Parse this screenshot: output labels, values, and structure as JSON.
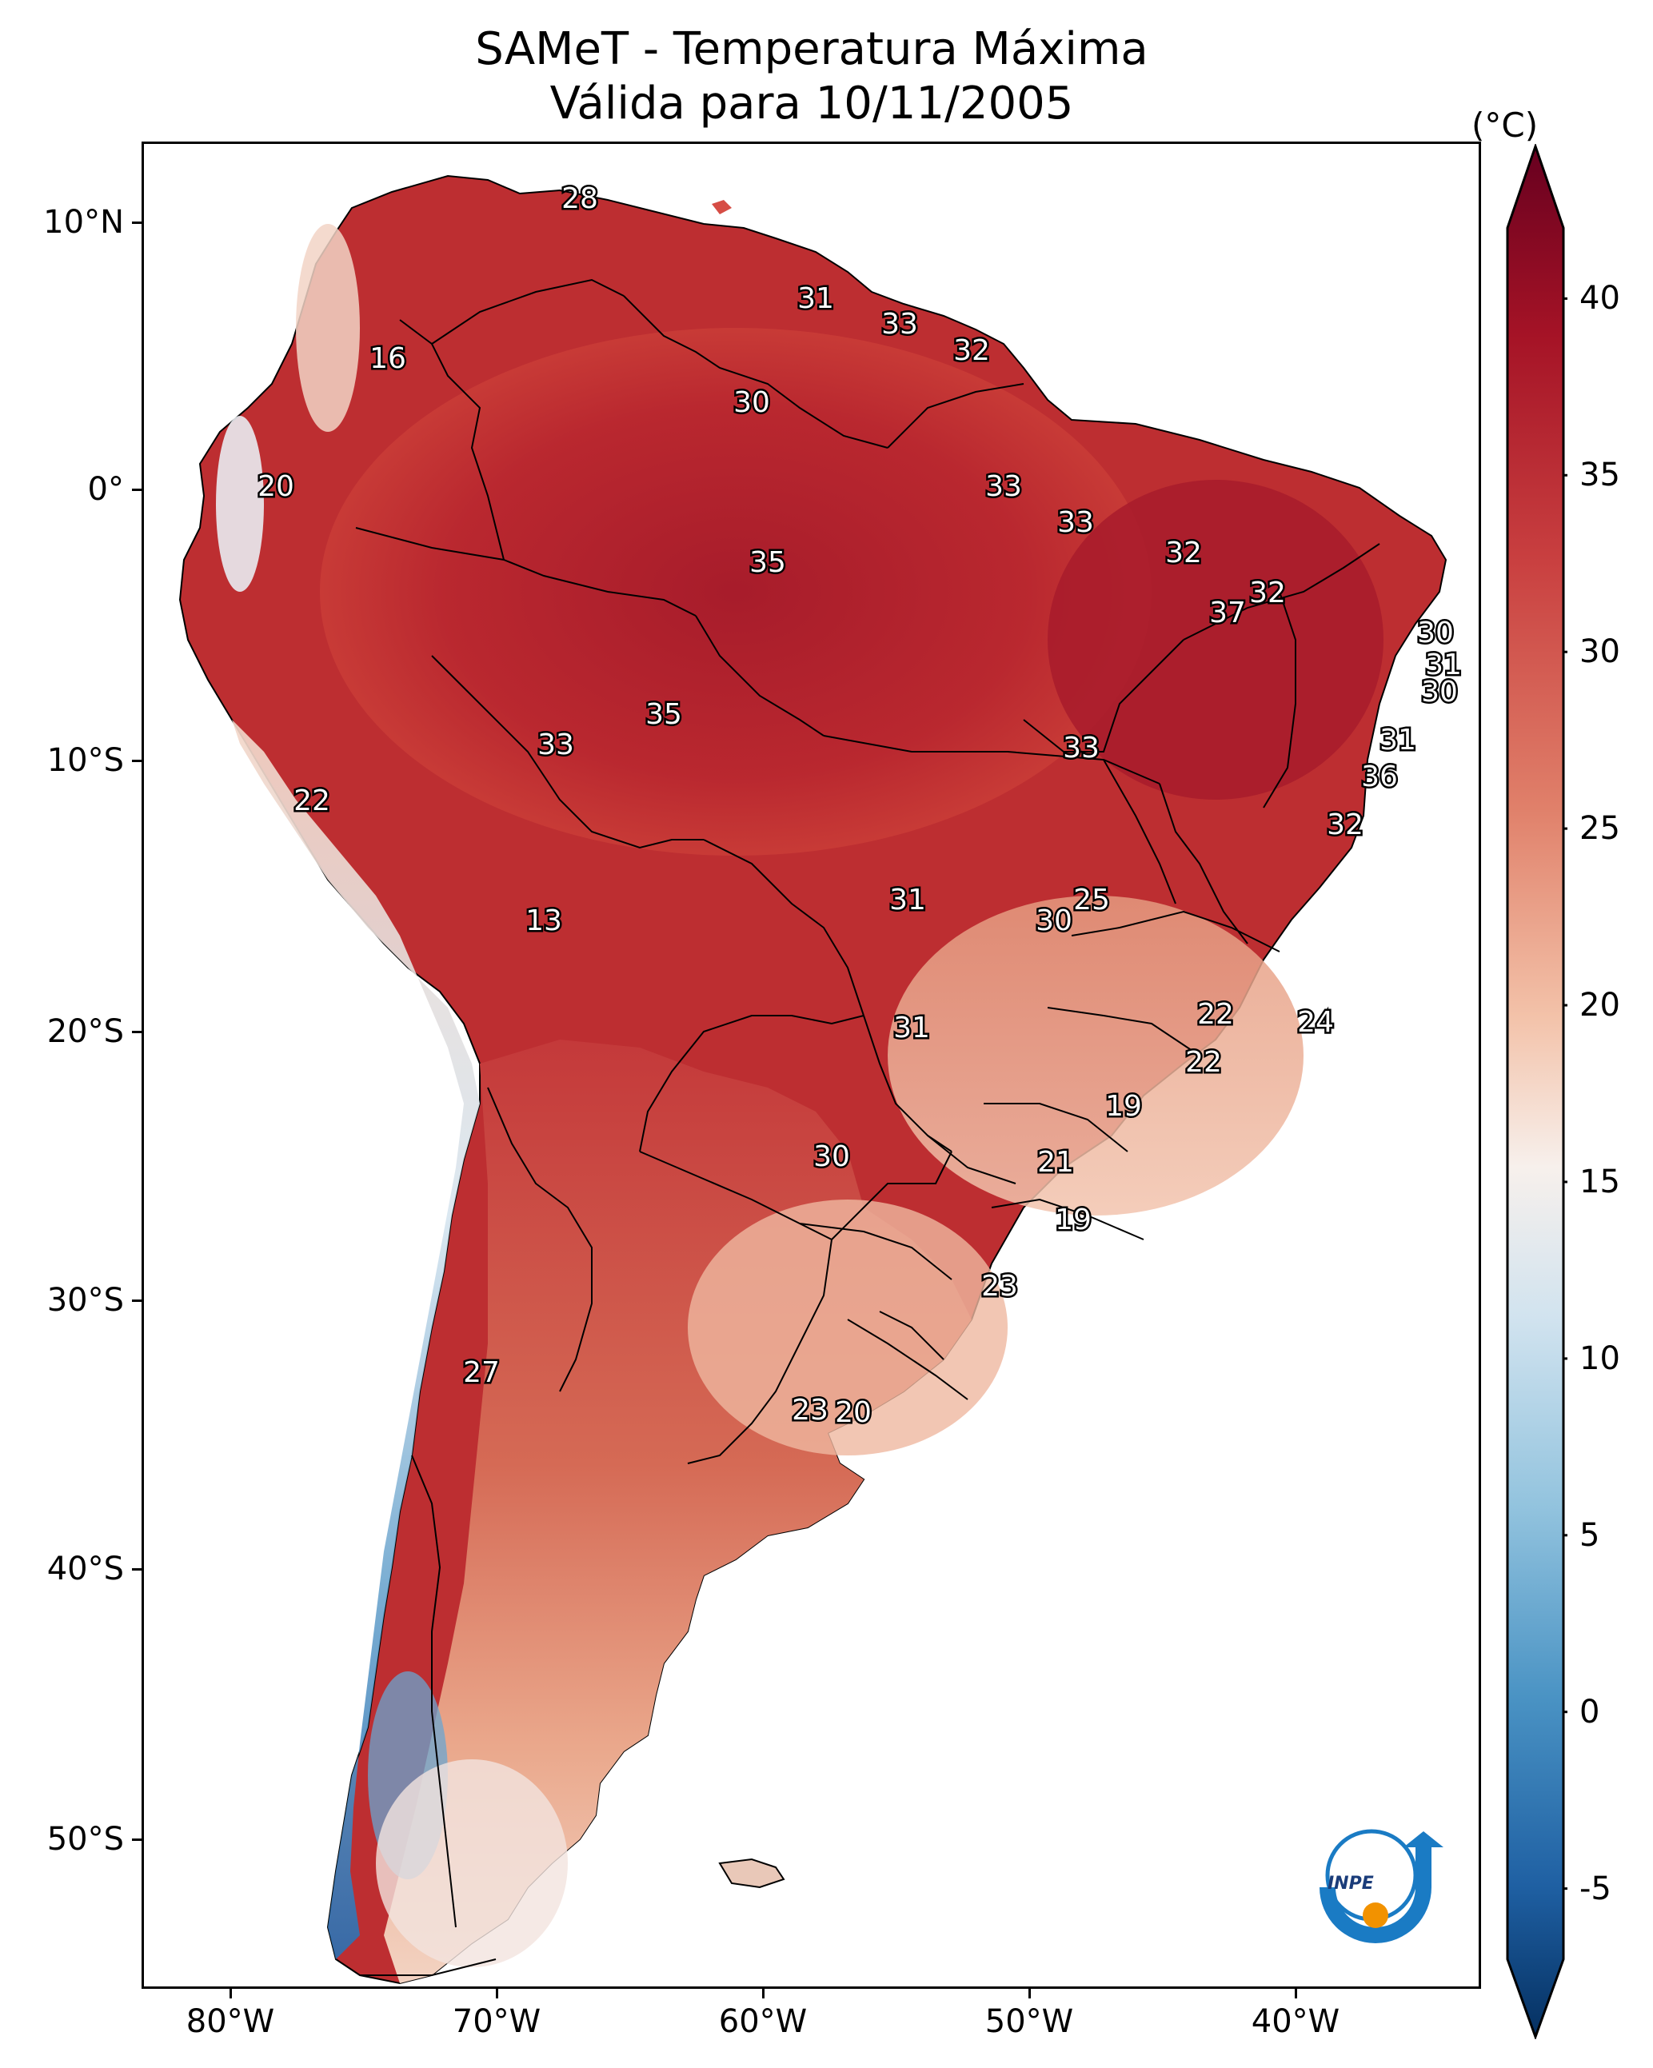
{
  "header": {
    "title_line1": "SAMeT - Temperatura Máxima",
    "title_line2": "Válida para 10/11/2005"
  },
  "map": {
    "lon_ticks": [
      "80°W",
      "70°W",
      "60°W",
      "50°W",
      "40°W"
    ],
    "lat_ticks": [
      "10°N",
      "0°",
      "10°S",
      "20°S",
      "30°S",
      "40°S",
      "50°S"
    ],
    "station_labels": [
      "28",
      "16",
      "31",
      "33",
      "32",
      "30",
      "20",
      "33",
      "33",
      "35",
      "32",
      "32",
      "37",
      "30",
      "31",
      "30",
      "35",
      "33",
      "33",
      "31",
      "22",
      "36",
      "32",
      "25",
      "30",
      "13",
      "31",
      "22",
      "24",
      "31",
      "22",
      "19",
      "30",
      "21",
      "19",
      "23",
      "27",
      "23",
      "20"
    ]
  },
  "colorbar": {
    "unit": "(°C)",
    "ticks": [
      "40",
      "35",
      "30",
      "25",
      "20",
      "15",
      "10",
      "5",
      "0",
      "-5"
    ],
    "min": -7,
    "max": 42,
    "extend": "both",
    "colormap": "RdBu_r"
  },
  "logo": {
    "text": "INPE",
    "ring_color": "#1a7bc4",
    "dot_color": "#f29200"
  },
  "colors": {
    "hot": "#b5222d",
    "warm": "#e8967a",
    "neutral": "#f7f2ef",
    "cold": "#3c7ab6"
  }
}
